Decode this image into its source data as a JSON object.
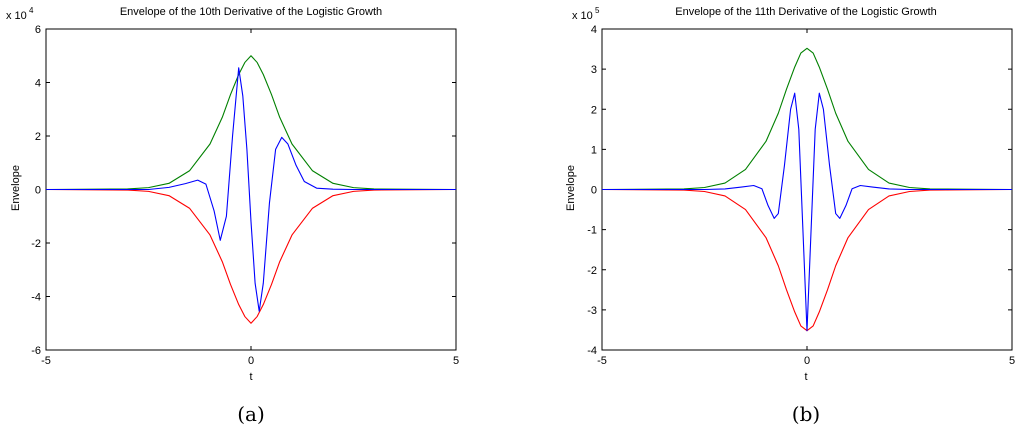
{
  "chart_data": [
    {
      "type": "line",
      "title": "Envelope of the 10th Derivative of the Logistic Growth",
      "xlabel": "t",
      "ylabel": "Envelope",
      "xlim": [
        -5,
        5
      ],
      "ylim": [
        -60000,
        60000
      ],
      "xticks": [
        -5,
        0,
        5
      ],
      "yticks": [
        -6,
        -4,
        -2,
        0,
        2,
        4,
        6
      ],
      "y_multiplier": "x 10",
      "y_exponent": "4",
      "caption": "(a)",
      "colors": {
        "upper": "#008000",
        "lower": "#ff0000",
        "signal": "#0000ff"
      },
      "series": [
        {
          "key": "upper",
          "x": [
            -5,
            -3,
            -2.5,
            -2,
            -1.5,
            -1,
            -0.7,
            -0.5,
            -0.3,
            -0.15,
            0,
            0.15,
            0.3,
            0.5,
            0.7,
            1,
            1.5,
            2,
            2.5,
            3,
            5
          ],
          "y": [
            0,
            200,
            700,
            2300,
            7000,
            17000,
            27000,
            35500,
            43000,
            47500,
            50000,
            47500,
            43000,
            35500,
            27000,
            17000,
            7000,
            2300,
            700,
            200,
            0
          ]
        },
        {
          "key": "lower",
          "x": [
            -5,
            -3,
            -2.5,
            -2,
            -1.5,
            -1,
            -0.7,
            -0.5,
            -0.3,
            -0.15,
            0,
            0.15,
            0.3,
            0.5,
            0.7,
            1,
            1.5,
            2,
            2.5,
            3,
            5
          ],
          "y": [
            0,
            -200,
            -700,
            -2300,
            -7000,
            -17000,
            -27000,
            -35500,
            -43000,
            -47500,
            -50000,
            -47500,
            -43000,
            -35500,
            -27000,
            -17000,
            -7000,
            -2300,
            -700,
            -200,
            0
          ]
        },
        {
          "key": "signal",
          "x": [
            -5,
            -2.5,
            -2,
            -1.6,
            -1.3,
            -1.1,
            -0.9,
            -0.75,
            -0.6,
            -0.45,
            -0.3,
            -0.2,
            -0.1,
            0,
            0.1,
            0.2,
            0.3,
            0.45,
            0.6,
            0.75,
            0.9,
            1.1,
            1.3,
            1.6,
            2,
            2.5,
            5
          ],
          "y": [
            0,
            0,
            800,
            2200,
            3500,
            2000,
            -8000,
            -19000,
            -10000,
            20000,
            45500,
            35000,
            15000,
            -12000,
            -35000,
            -45500,
            -35000,
            -5000,
            15000,
            19500,
            17000,
            9000,
            3000,
            500,
            100,
            0,
            0
          ]
        }
      ]
    },
    {
      "type": "line",
      "title": "Envelope of the 11th Derivative of the Logistic Growth",
      "xlabel": "t",
      "ylabel": "Envelope",
      "xlim": [
        -5,
        5
      ],
      "ylim": [
        -400000,
        400000
      ],
      "xticks": [
        -5,
        0,
        5
      ],
      "yticks": [
        -4,
        -3,
        -2,
        -1,
        0,
        1,
        2,
        3,
        4
      ],
      "y_multiplier": "x 10",
      "y_exponent": "5",
      "caption": "(b)",
      "colors": {
        "upper": "#008000",
        "lower": "#ff0000",
        "signal": "#0000ff"
      },
      "series": [
        {
          "key": "upper",
          "x": [
            -5,
            -3,
            -2.5,
            -2,
            -1.5,
            -1,
            -0.7,
            -0.5,
            -0.3,
            -0.15,
            0,
            0.15,
            0.3,
            0.5,
            0.7,
            1,
            1.5,
            2,
            2.5,
            3,
            5
          ],
          "y": [
            0,
            1500,
            5000,
            16000,
            50000,
            120000,
            190000,
            250000,
            305000,
            340000,
            352000,
            340000,
            305000,
            250000,
            190000,
            120000,
            50000,
            16000,
            5000,
            1500,
            0
          ]
        },
        {
          "key": "lower",
          "x": [
            -5,
            -3,
            -2.5,
            -2,
            -1.5,
            -1,
            -0.7,
            -0.5,
            -0.3,
            -0.15,
            0,
            0.15,
            0.3,
            0.5,
            0.7,
            1,
            1.5,
            2,
            2.5,
            3,
            5
          ],
          "y": [
            0,
            -1500,
            -5000,
            -16000,
            -50000,
            -120000,
            -190000,
            -250000,
            -305000,
            -340000,
            -352000,
            -340000,
            -305000,
            -250000,
            -190000,
            -120000,
            -50000,
            -16000,
            -5000,
            -1500,
            0
          ]
        },
        {
          "key": "signal",
          "x": [
            -5,
            -2.5,
            -2,
            -1.6,
            -1.3,
            -1.1,
            -0.95,
            -0.8,
            -0.7,
            -0.55,
            -0.4,
            -0.3,
            -0.2,
            -0.1,
            0,
            0.1,
            0.2,
            0.3,
            0.4,
            0.55,
            0.7,
            0.8,
            0.95,
            1.1,
            1.3,
            1.6,
            2,
            2.5,
            5
          ],
          "y": [
            0,
            0,
            1500,
            6000,
            10000,
            2000,
            -40000,
            -72000,
            -60000,
            60000,
            200000,
            240000,
            150000,
            -100000,
            -352000,
            -100000,
            150000,
            240000,
            200000,
            60000,
            -60000,
            -72000,
            -40000,
            2000,
            10000,
            6000,
            1500,
            0,
            0
          ]
        }
      ]
    }
  ]
}
